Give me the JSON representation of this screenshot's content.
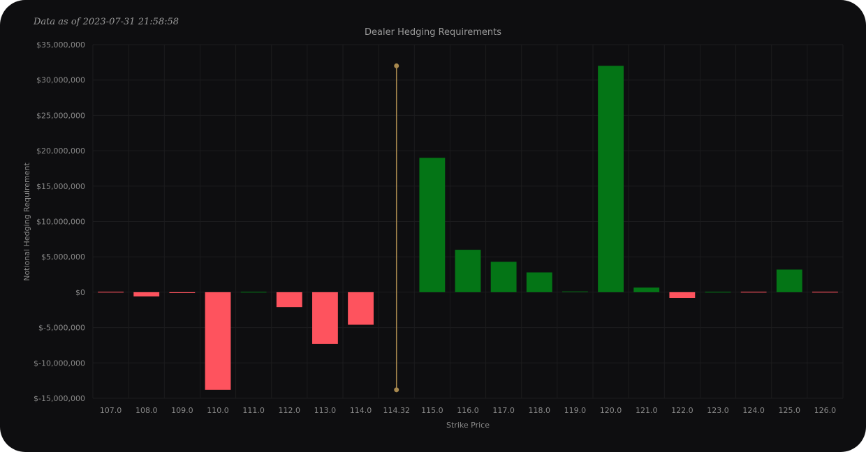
{
  "header": {
    "timestamp": "Data as of 2023-07-31 21:58:58"
  },
  "chart_data": {
    "type": "bar",
    "title": "Dealer Hedging Requirements",
    "xlabel": "Strike Price",
    "ylabel": "Notional Hedging Requirement",
    "ylim": [
      -15000000,
      35000000
    ],
    "yticks": [
      35000000,
      30000000,
      25000000,
      20000000,
      15000000,
      10000000,
      5000000,
      0,
      -5000000,
      -10000000,
      -15000000
    ],
    "ytick_labels": [
      "$35,000,000",
      "$30,000,000",
      "$25,000,000",
      "$20,000,000",
      "$15,000,000",
      "$10,000,000",
      "$5,000,000",
      "$0",
      "$-5,000,000",
      "$-10,000,000",
      "$-15,000,000"
    ],
    "categories": [
      "107.0",
      "108.0",
      "109.0",
      "110.0",
      "111.0",
      "112.0",
      "113.0",
      "114.0",
      "114.32",
      "115.0",
      "116.0",
      "117.0",
      "118.0",
      "119.0",
      "120.0",
      "121.0",
      "122.0",
      "123.0",
      "124.0",
      "125.0",
      "126.0"
    ],
    "values": [
      -50000,
      -600000,
      -100000,
      -13800000,
      50000,
      -2100000,
      -7300000,
      -4600000,
      null,
      19000000,
      6000000,
      4300000,
      2800000,
      100000,
      32000000,
      650000,
      -800000,
      80000,
      -30000,
      3200000,
      -20000
    ],
    "spot_marker": {
      "category": "114.32",
      "range": [
        -13800000,
        32000000
      ]
    },
    "colors": {
      "positive": "#047516",
      "negative": "#fe535e",
      "spot": "#a8894e",
      "grid": "#1c1c1e"
    },
    "grid": true
  }
}
